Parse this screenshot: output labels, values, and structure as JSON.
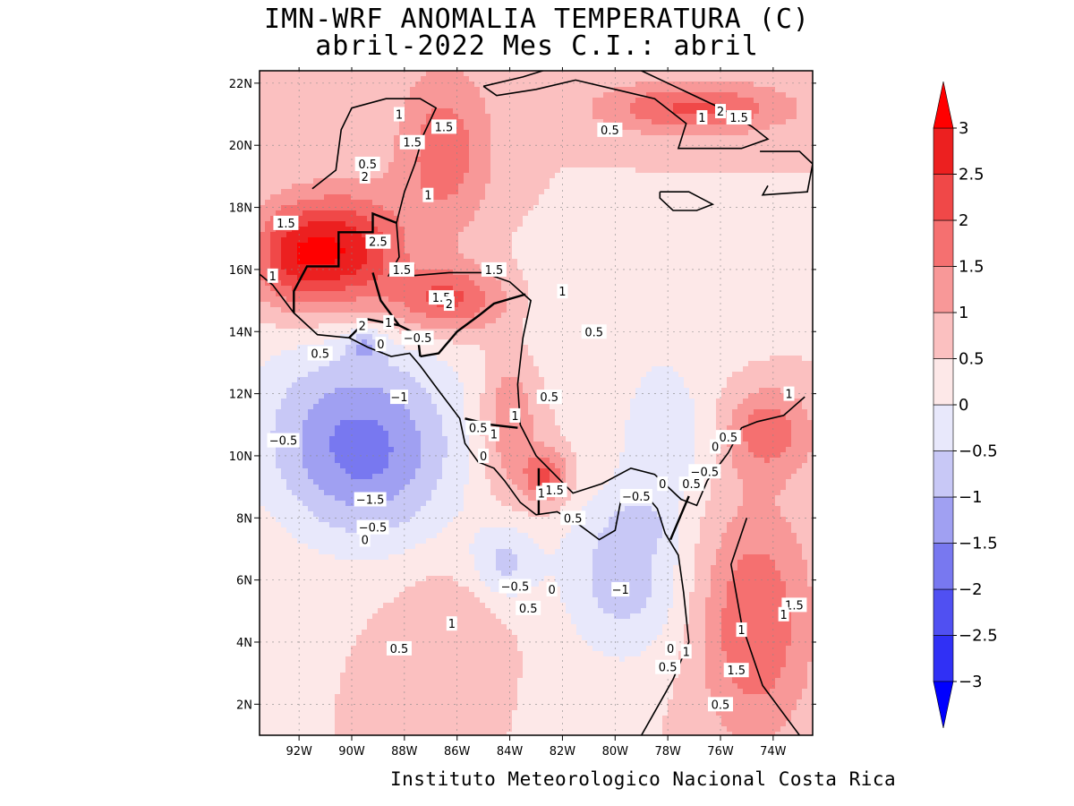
{
  "title": {
    "line1": "IMN-WRF  ANOMALIA TEMPERATURA (C)",
    "line2": "abril-2022 Mes C.I.: abril"
  },
  "footer": "Instituto Meteorologico Nacional Costa Rica",
  "map": {
    "lon_range": [
      -93.5,
      -72.5
    ],
    "lat_range": [
      1.0,
      22.4
    ],
    "x_ticks": [
      {
        "lon": -92,
        "label": "92W"
      },
      {
        "lon": -90,
        "label": "90W"
      },
      {
        "lon": -88,
        "label": "88W"
      },
      {
        "lon": -86,
        "label": "86W"
      },
      {
        "lon": -84,
        "label": "84W"
      },
      {
        "lon": -82,
        "label": "82W"
      },
      {
        "lon": -80,
        "label": "80W"
      },
      {
        "lon": -78,
        "label": "78W"
      },
      {
        "lon": -76,
        "label": "76W"
      },
      {
        "lon": -74,
        "label": "74W"
      }
    ],
    "y_ticks": [
      {
        "lat": 2,
        "label": "2N"
      },
      {
        "lat": 4,
        "label": "4N"
      },
      {
        "lat": 6,
        "label": "6N"
      },
      {
        "lat": 8,
        "label": "8N"
      },
      {
        "lat": 10,
        "label": "10N"
      },
      {
        "lat": 12,
        "label": "12N"
      },
      {
        "lat": 14,
        "label": "14N"
      },
      {
        "lat": 16,
        "label": "16N"
      },
      {
        "lat": 18,
        "label": "18N"
      },
      {
        "lat": 20,
        "label": "20N"
      },
      {
        "lat": 22,
        "label": "22N"
      }
    ],
    "background_value": 0.5,
    "anomaly_centers": [
      {
        "lon": -89.4,
        "lat": 9.8,
        "value": -1.6,
        "sx": 2.4,
        "sy": 2.0
      },
      {
        "lon": -79.7,
        "lat": 6.2,
        "value": -1.3,
        "sx": 1.7,
        "sy": 2.0
      },
      {
        "lon": -84.2,
        "lat": 6.6,
        "value": -1.1,
        "sx": 0.9,
        "sy": 0.9
      },
      {
        "lon": -90.5,
        "lat": 11.5,
        "value": -0.8,
        "sx": 3.0,
        "sy": 2.2
      },
      {
        "lon": -86.5,
        "lat": 19.8,
        "value": 1.3,
        "sx": 1.3,
        "sy": 2.0
      },
      {
        "lon": -90.2,
        "lat": 16.6,
        "value": 2.3,
        "sx": 1.5,
        "sy": 1.3
      },
      {
        "lon": -92.4,
        "lat": 16.4,
        "value": 1.6,
        "sx": 1.1,
        "sy": 1.2
      },
      {
        "lon": -86.3,
        "lat": 15.0,
        "value": 1.8,
        "sx": 1.6,
        "sy": 0.8
      },
      {
        "lon": -84.0,
        "lat": 11.2,
        "value": 1.1,
        "sx": 0.8,
        "sy": 1.8
      },
      {
        "lon": -82.6,
        "lat": 9.3,
        "value": 1.6,
        "sx": 0.6,
        "sy": 0.6
      },
      {
        "lon": -77.0,
        "lat": 21.2,
        "value": 1.6,
        "sx": 2.6,
        "sy": 0.6
      },
      {
        "lon": -74.7,
        "lat": 4.6,
        "value": 1.5,
        "sx": 1.5,
        "sy": 2.6
      },
      {
        "lon": -74.2,
        "lat": 10.8,
        "value": 1.3,
        "sx": 1.2,
        "sy": 1.0
      },
      {
        "lon": -86.5,
        "lat": 4.5,
        "value": 0.5,
        "sx": 1.4,
        "sy": 1.2
      },
      {
        "lon": -89.5,
        "lat": 13.6,
        "value": -1.0,
        "sx": 0.5,
        "sy": 0.4
      },
      {
        "lon": -81.0,
        "lat": 14.3,
        "value": -0.5,
        "sx": 4.0,
        "sy": 1.6
      },
      {
        "lon": -78.0,
        "lat": 10.6,
        "value": -0.9,
        "sx": 1.2,
        "sy": 1.4
      },
      {
        "lon": -79.0,
        "lat": 7.8,
        "value": -0.4,
        "sx": 0.8,
        "sy": 0.5
      }
    ],
    "contour_labels": [
      {
        "lon": -88.2,
        "lat": 21.0,
        "text": "1"
      },
      {
        "lon": -86.5,
        "lat": 20.6,
        "text": "1.5"
      },
      {
        "lon": -87.7,
        "lat": 20.1,
        "text": "1.5"
      },
      {
        "lon": -89.4,
        "lat": 19.4,
        "text": "0.5"
      },
      {
        "lon": -89.5,
        "lat": 19.0,
        "text": "2"
      },
      {
        "lon": -87.1,
        "lat": 18.4,
        "text": "1"
      },
      {
        "lon": -92.5,
        "lat": 17.5,
        "text": "1.5"
      },
      {
        "lon": -89.0,
        "lat": 16.9,
        "text": "2.5"
      },
      {
        "lon": -88.1,
        "lat": 16.0,
        "text": "1.5"
      },
      {
        "lon": -93.0,
        "lat": 15.8,
        "text": "1"
      },
      {
        "lon": -84.6,
        "lat": 16.0,
        "text": "1.5"
      },
      {
        "lon": -86.6,
        "lat": 15.1,
        "text": "1.5"
      },
      {
        "lon": -86.3,
        "lat": 14.9,
        "text": "2"
      },
      {
        "lon": -82.0,
        "lat": 15.3,
        "text": "1"
      },
      {
        "lon": -89.6,
        "lat": 14.2,
        "text": "2"
      },
      {
        "lon": -88.6,
        "lat": 14.3,
        "text": "1"
      },
      {
        "lon": -87.5,
        "lat": 13.8,
        "text": "-0.5"
      },
      {
        "lon": -88.9,
        "lat": 13.6,
        "text": "0"
      },
      {
        "lon": -91.2,
        "lat": 13.3,
        "text": "0.5"
      },
      {
        "lon": -80.8,
        "lat": 14.0,
        "text": "0.5"
      },
      {
        "lon": -82.5,
        "lat": 11.9,
        "text": "0.5"
      },
      {
        "lon": -88.2,
        "lat": 11.9,
        "text": "-1"
      },
      {
        "lon": -83.8,
        "lat": 11.3,
        "text": "1"
      },
      {
        "lon": -85.2,
        "lat": 10.9,
        "text": "0.5"
      },
      {
        "lon": -84.6,
        "lat": 10.7,
        "text": "1"
      },
      {
        "lon": -92.6,
        "lat": 10.5,
        "text": "-0.5"
      },
      {
        "lon": -75.7,
        "lat": 10.6,
        "text": "0.5"
      },
      {
        "lon": -73.4,
        "lat": 12.0,
        "text": "1"
      },
      {
        "lon": -76.2,
        "lat": 10.3,
        "text": "0"
      },
      {
        "lon": -85.0,
        "lat": 10.0,
        "text": "0"
      },
      {
        "lon": -76.6,
        "lat": 9.5,
        "text": "-0.5"
      },
      {
        "lon": -77.1,
        "lat": 9.1,
        "text": "0.5"
      },
      {
        "lon": -78.2,
        "lat": 9.1,
        "text": "0"
      },
      {
        "lon": -79.2,
        "lat": 8.7,
        "text": "-0.5"
      },
      {
        "lon": -82.3,
        "lat": 8.9,
        "text": "1.5"
      },
      {
        "lon": -82.8,
        "lat": 8.8,
        "text": "1"
      },
      {
        "lon": -89.3,
        "lat": 8.6,
        "text": "-1.5"
      },
      {
        "lon": -81.6,
        "lat": 8.0,
        "text": "0.5"
      },
      {
        "lon": -89.2,
        "lat": 7.7,
        "text": "-0.5"
      },
      {
        "lon": -89.5,
        "lat": 7.3,
        "text": "0"
      },
      {
        "lon": -83.8,
        "lat": 5.8,
        "text": "-0.5"
      },
      {
        "lon": -82.4,
        "lat": 5.7,
        "text": "0"
      },
      {
        "lon": -79.8,
        "lat": 5.7,
        "text": "-1"
      },
      {
        "lon": -83.3,
        "lat": 5.1,
        "text": "0.5"
      },
      {
        "lon": -86.2,
        "lat": 4.6,
        "text": "1"
      },
      {
        "lon": -88.2,
        "lat": 3.8,
        "text": "0.5"
      },
      {
        "lon": -75.2,
        "lat": 4.4,
        "text": "1"
      },
      {
        "lon": -73.2,
        "lat": 5.2,
        "text": "1.5"
      },
      {
        "lon": -73.6,
        "lat": 4.9,
        "text": "1"
      },
      {
        "lon": -77.9,
        "lat": 3.8,
        "text": "0"
      },
      {
        "lon": -77.3,
        "lat": 3.7,
        "text": "1"
      },
      {
        "lon": -78.0,
        "lat": 3.2,
        "text": "0.5"
      },
      {
        "lon": -75.4,
        "lat": 3.1,
        "text": "1.5"
      },
      {
        "lon": -76.0,
        "lat": 2.0,
        "text": "0.5"
      },
      {
        "lon": -80.2,
        "lat": 20.5,
        "text": "0.5"
      },
      {
        "lon": -76.7,
        "lat": 20.9,
        "text": "1"
      },
      {
        "lon": -76.0,
        "lat": 21.1,
        "text": "2"
      },
      {
        "lon": -75.3,
        "lat": 20.9,
        "text": "1.5"
      }
    ]
  },
  "colorbar": {
    "levels": [
      -3,
      -2.5,
      -2,
      -1.5,
      -1,
      -0.5,
      0,
      0.5,
      1,
      1.5,
      2,
      2.5,
      3
    ],
    "labels": [
      "-3",
      "-2.5",
      "-2",
      "-1.5",
      "-1",
      "-0.5",
      "0",
      "0.5",
      "1",
      "1.5",
      "2",
      "2.5",
      "3"
    ],
    "colors": [
      "#1010f8",
      "#3030f5",
      "#5050f2",
      "#7878f0",
      "#a0a0f2",
      "#c8c8f6",
      "#e8e8fb",
      "#fde8e8",
      "#fbc0c0",
      "#f89898",
      "#f57070",
      "#f04848",
      "#ec2020",
      "#f40000"
    ],
    "below_color": "#0000ff",
    "above_color": "#ff0000"
  }
}
